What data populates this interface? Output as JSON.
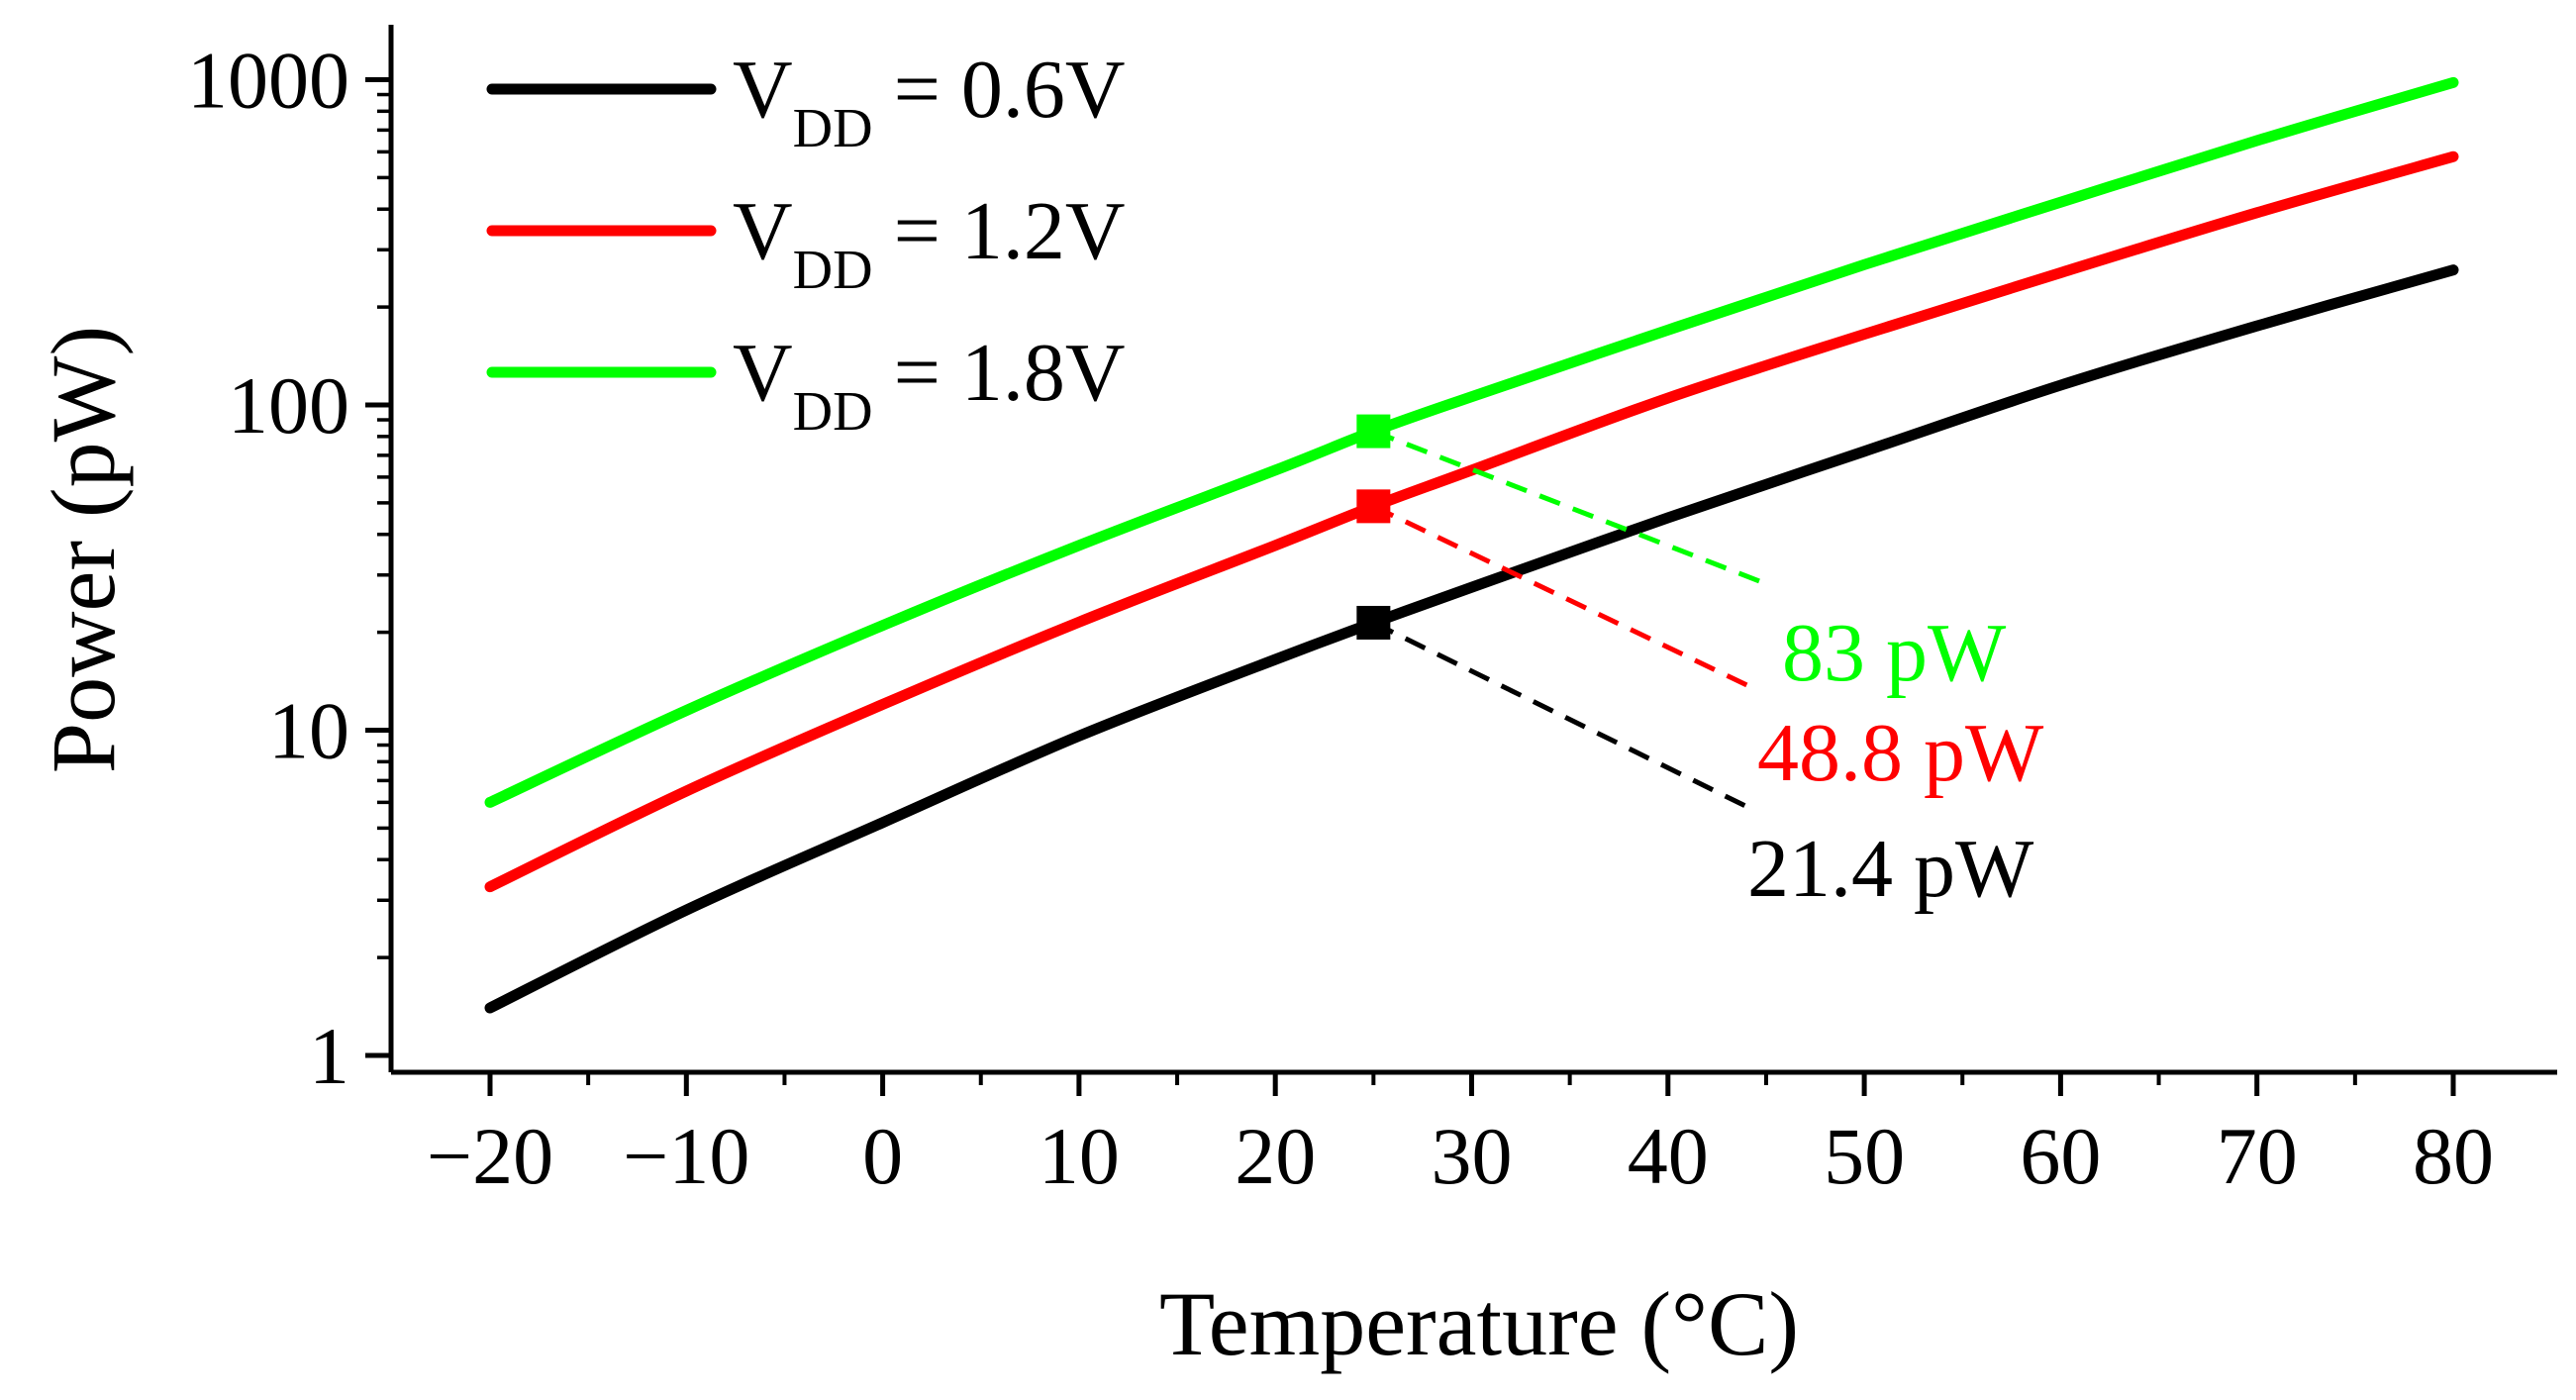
{
  "chart_data": {
    "type": "line",
    "xlabel": "Temperature (°C)",
    "ylabel": "Power (pW)",
    "yscale": "log",
    "xlim": [
      -25,
      85
    ],
    "ylim": [
      0.9,
      1200
    ],
    "xticks": [
      -20,
      -10,
      0,
      10,
      20,
      30,
      40,
      50,
      60,
      70,
      80
    ],
    "xtick_labels": [
      "−20",
      "−10",
      "0",
      "10",
      "20",
      "30",
      "40",
      "50",
      "60",
      "70",
      "80"
    ],
    "yticks": [
      1,
      10,
      100,
      1000
    ],
    "ytick_labels": [
      "1",
      "10",
      "100",
      "1000"
    ],
    "legend_position": "top-left",
    "series": [
      {
        "name": "V_DD = 0.6V",
        "legend_main": "V",
        "legend_sub": "DD",
        "legend_rest": " = 0.6V",
        "color": "#000000",
        "x": [
          -20,
          -10,
          0,
          10,
          20,
          25,
          30,
          40,
          50,
          60,
          70,
          80
        ],
        "values": [
          1.4,
          2.8,
          5.2,
          9.6,
          16.5,
          21.4,
          27.5,
          45,
          72,
          115,
          175,
          260
        ]
      },
      {
        "name": "V_DD = 1.2V",
        "legend_main": "V",
        "legend_sub": "DD",
        "legend_rest": " = 1.2V",
        "color": "#ff0000",
        "x": [
          -20,
          -10,
          0,
          10,
          20,
          25,
          30,
          40,
          50,
          60,
          70,
          80
        ],
        "values": [
          3.3,
          6.5,
          12,
          21.5,
          37,
          48.8,
          63,
          105,
          165,
          255,
          390,
          580
        ]
      },
      {
        "name": "V_DD = 1.8V",
        "legend_main": "V",
        "legend_sub": "DD",
        "legend_rest": " = 1.8V",
        "color": "#00ff00",
        "x": [
          -20,
          -10,
          0,
          10,
          20,
          25,
          30,
          40,
          50,
          60,
          70,
          80
        ],
        "values": [
          6,
          11.5,
          21,
          37,
          63,
          83,
          106,
          170,
          270,
          420,
          650,
          980
        ]
      }
    ],
    "annotations": [
      {
        "x": 25,
        "y": 83,
        "label": "83 pW",
        "color": "#00ff00"
      },
      {
        "x": 25,
        "y": 48.8,
        "label": "48.8 pW",
        "color": "#ff0000"
      },
      {
        "x": 25,
        "y": 21.4,
        "label": "21.4 pW",
        "color": "#000000"
      }
    ]
  }
}
